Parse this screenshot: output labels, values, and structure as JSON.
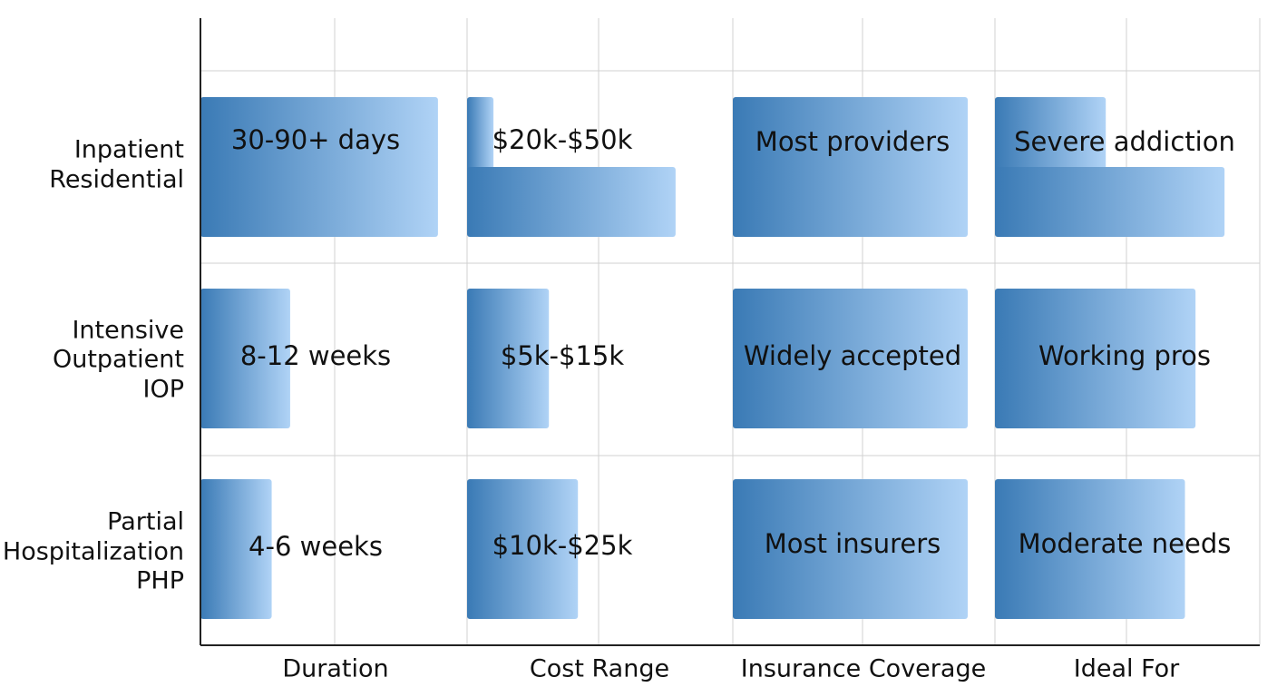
{
  "chart_data": {
    "type": "bar",
    "title": "",
    "xlabel": "",
    "ylabel": "",
    "grid": true,
    "legend": "none",
    "colors": {
      "bar_dark": "#3a7ab5",
      "bar_light": "#b0d3f6",
      "grid": "#d0d0d0",
      "axis": "#222222"
    },
    "columns": [
      "Duration",
      "Cost Range",
      "Insurance Coverage",
      "Ideal For"
    ],
    "rows": [
      {
        "label": [
          "Inpatient",
          "Residential"
        ],
        "cells": [
          {
            "text": "30-90+ days",
            "value": 0.9
          },
          {
            "text": "$20k-$50k",
            "value": 0.79,
            "stub": 0.1
          },
          {
            "text": "Most providers",
            "value": 0.89
          },
          {
            "text": "Severe addiction",
            "value": 0.87,
            "stub": 0.42
          }
        ]
      },
      {
        "label": [
          "Intensive",
          "Outpatient",
          "IOP"
        ],
        "cells": [
          {
            "text": "8-12 weeks",
            "value": 0.34
          },
          {
            "text": "$5k-$15k",
            "value": 0.31
          },
          {
            "text": "Widely accepted",
            "value": 0.89
          },
          {
            "text": "Working pros",
            "value": 0.76
          }
        ]
      },
      {
        "label": [
          "Partial",
          "Hospitalization",
          "PHP"
        ],
        "cells": [
          {
            "text": "4-6 weeks",
            "value": 0.27
          },
          {
            "text": "$10k-$25k",
            "value": 0.42
          },
          {
            "text": "Most insurers",
            "value": 0.89
          },
          {
            "text": "Moderate needs",
            "value": 0.72
          }
        ]
      }
    ]
  }
}
